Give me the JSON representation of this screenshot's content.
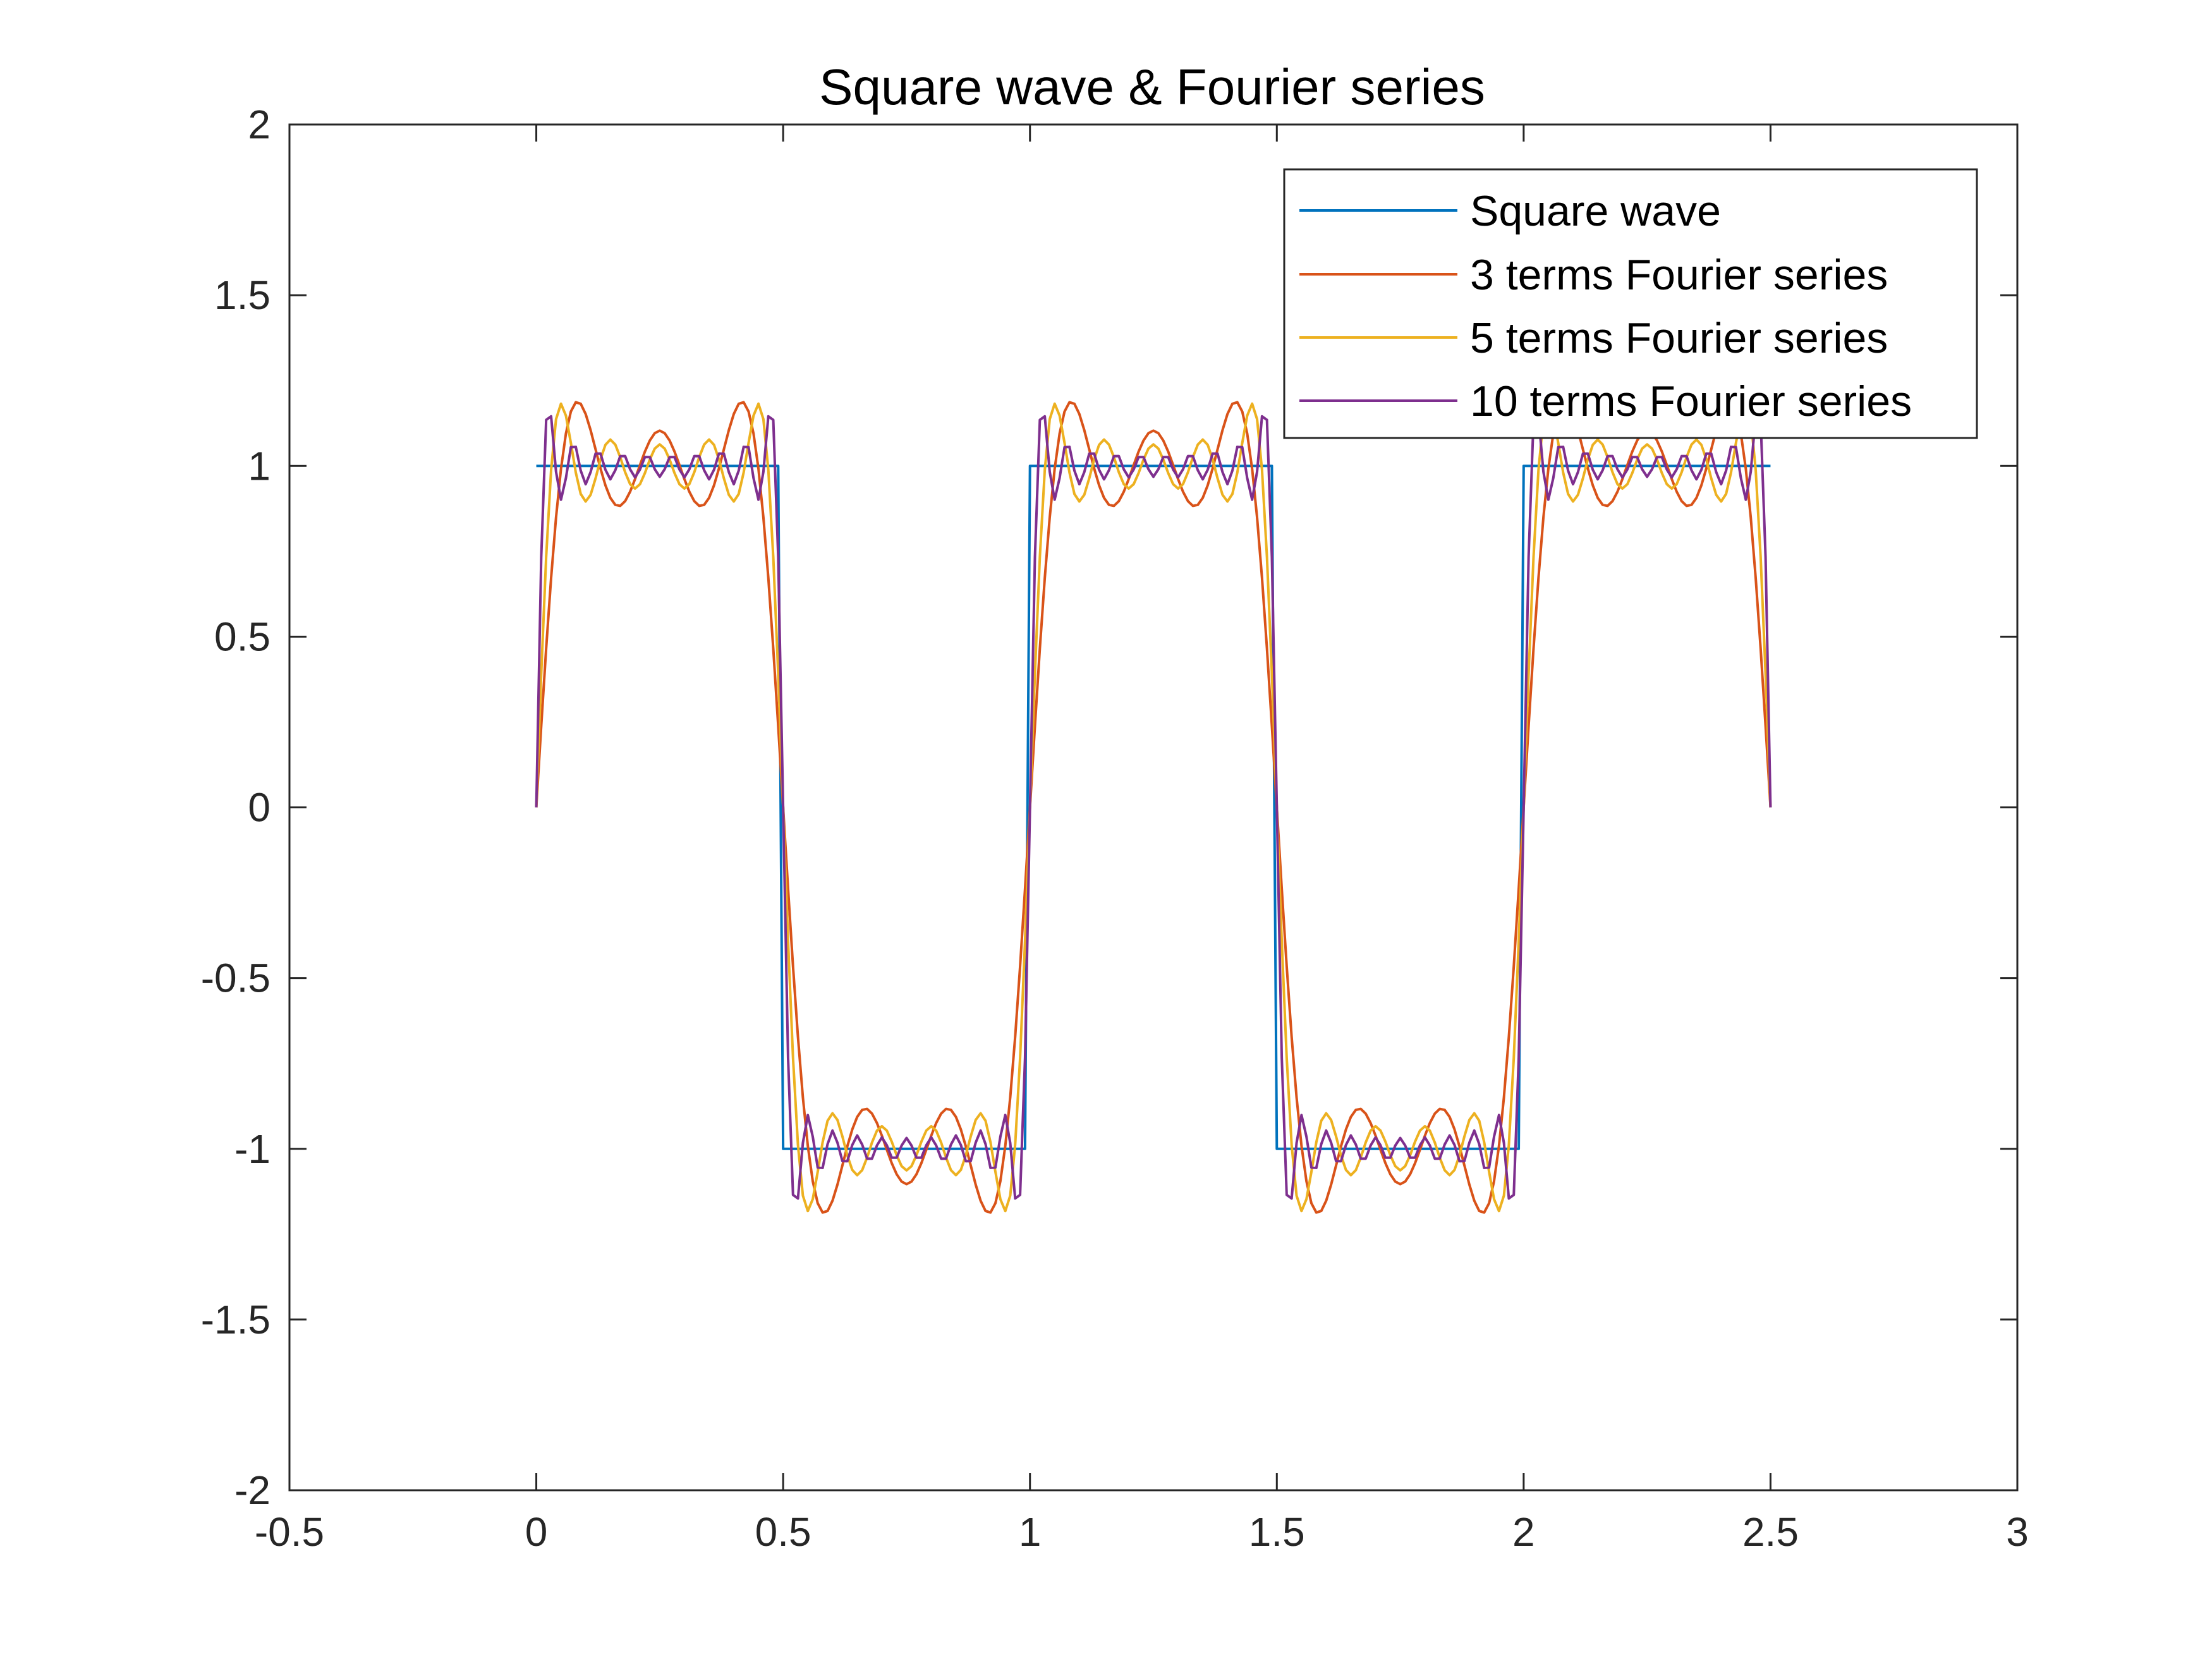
{
  "chart_data": {
    "type": "line",
    "title": "Square wave & Fourier series",
    "xlabel": "",
    "ylabel": "",
    "xlim": [
      -0.5,
      3
    ],
    "ylim": [
      -2,
      2
    ],
    "xticks": [
      "-0.5",
      "0",
      "0.5",
      "1",
      "1.5",
      "2",
      "2.5",
      "3"
    ],
    "yticks": [
      "-2",
      "-1.5",
      "-1",
      "-0.5",
      "0",
      "0.5",
      "1",
      "1.5",
      "2"
    ],
    "grid": false,
    "legend_position": "top-right",
    "x_domain": [
      0,
      2.5
    ],
    "square_wave_period": 1,
    "series": [
      {
        "name": "Square wave",
        "kind": "square",
        "terms": 0,
        "color": "#0072BD"
      },
      {
        "name": "3 terms Fourier series",
        "kind": "fourier",
        "terms": 3,
        "color": "#D95319"
      },
      {
        "name": "5 terms Fourier series",
        "kind": "fourier",
        "terms": 5,
        "color": "#EDB120"
      },
      {
        "name": "10 terms Fourier series",
        "kind": "fourier",
        "terms": 10,
        "color": "#7E2F8E"
      }
    ]
  }
}
